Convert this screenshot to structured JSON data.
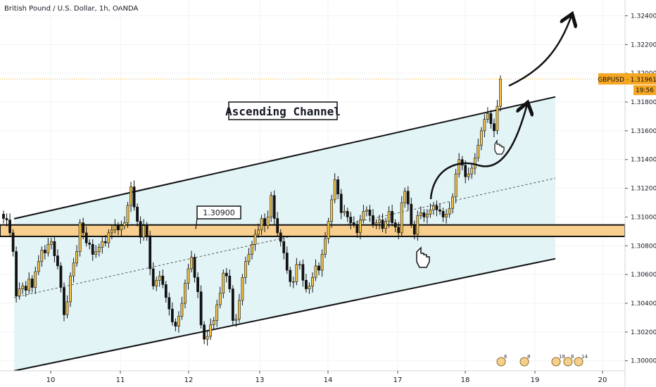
{
  "header": {
    "title": "British Pound / U.S. Dollar, 1h, OANDA"
  },
  "price_axis": {
    "ticks": [
      "1.32400",
      "1.32200",
      "1.32000",
      "1.31800",
      "1.31600",
      "1.31400",
      "1.31200",
      "1.31000",
      "1.30800",
      "1.30600",
      "1.30400",
      "1.30200",
      "1.30000"
    ]
  },
  "time_axis": {
    "ticks": [
      "10",
      "11",
      "12",
      "13",
      "14",
      "17",
      "18",
      "19",
      "20"
    ]
  },
  "last_price": {
    "label": "GBPUSD · 1.31961",
    "time_left": "19:56",
    "color": "#f5a623"
  },
  "annotations": {
    "pattern_label": "Ascending Channel",
    "level_label": "1.30900"
  },
  "event_markers": [
    "6",
    "8",
    "18",
    "8",
    "14"
  ],
  "colors": {
    "bull": "#f0c24a",
    "bear": "#111111",
    "channel_fill": "#e3f4f7",
    "support_band": "#f8cf8e",
    "accent": "#f5a623",
    "grid": "#f1f3f6"
  },
  "chart_data": {
    "type": "candlestick",
    "symbol": "GBPUSD",
    "timeframe": "1h",
    "ylim": [
      1.2993,
      1.3251
    ],
    "x_range": [
      "9 (late)",
      "20"
    ],
    "last_price": 1.31961,
    "support_resistance_zone": [
      1.30865,
      1.30945
    ],
    "channel": {
      "upper": {
        "start": 1.30988,
        "end": 1.31836
      },
      "lower": {
        "start": 1.2993,
        "end": 1.3071
      },
      "mid": {
        "start": 1.3044,
        "end": 1.3127
      }
    },
    "trend_drawing": "projected curved arrows to upside",
    "ohlc_note": "approximate hourly candles read from chart",
    "closes": [
      1.3099,
      1.3098,
      1.3089,
      1.3076,
      1.3045,
      1.305,
      1.3052,
      1.3049,
      1.3057,
      1.3051,
      1.3062,
      1.3069,
      1.3077,
      1.3075,
      1.3081,
      1.3083,
      1.3073,
      1.3066,
      1.3051,
      1.3032,
      1.3041,
      1.3059,
      1.3068,
      1.3076,
      1.3096,
      1.3089,
      1.3082,
      1.3081,
      1.3074,
      1.3076,
      1.3079,
      1.3083,
      1.3082,
      1.3089,
      1.3091,
      1.3094,
      1.3091,
      1.3094,
      1.3096,
      1.3108,
      1.3121,
      1.3107,
      1.3097,
      1.3086,
      1.3094,
      1.3087,
      1.3064,
      1.3052,
      1.3056,
      1.3059,
      1.3053,
      1.3044,
      1.3036,
      1.3027,
      1.3024,
      1.3031,
      1.304,
      1.3054,
      1.3064,
      1.3072,
      1.3058,
      1.3048,
      1.3025,
      1.3015,
      1.3017,
      1.3025,
      1.3028,
      1.3039,
      1.3047,
      1.3061,
      1.3059,
      1.305,
      1.3028,
      1.3029,
      1.3042,
      1.3058,
      1.3069,
      1.3074,
      1.3081,
      1.3088,
      1.3091,
      1.3099,
      1.3094,
      1.31,
      1.3115,
      1.3099,
      1.3089,
      1.3083,
      1.3075,
      1.3063,
      1.3055,
      1.3055,
      1.3067,
      1.3067,
      1.3056,
      1.305,
      1.3052,
      1.3058,
      1.3066,
      1.3063,
      1.3074,
      1.3085,
      1.3097,
      1.3112,
      1.3126,
      1.3116,
      1.3103,
      1.3104,
      1.31,
      1.3096,
      1.3095,
      1.3089,
      1.3098,
      1.3104,
      1.3105,
      1.3101,
      1.3095,
      1.3096,
      1.3098,
      1.3092,
      1.3097,
      1.3104,
      1.3096,
      1.3093,
      1.3089,
      1.311,
      1.3118,
      1.3109,
      1.3095,
      1.3088,
      1.3101,
      1.3103,
      1.31,
      1.3102,
      1.3105,
      1.3108,
      1.3105,
      1.3104,
      1.31,
      1.3102,
      1.3106,
      1.3114,
      1.313,
      1.314,
      1.3136,
      1.3128,
      1.313,
      1.3134,
      1.3141,
      1.315,
      1.316,
      1.3168,
      1.3172,
      1.3165,
      1.316,
      1.3177,
      1.3196
    ]
  }
}
